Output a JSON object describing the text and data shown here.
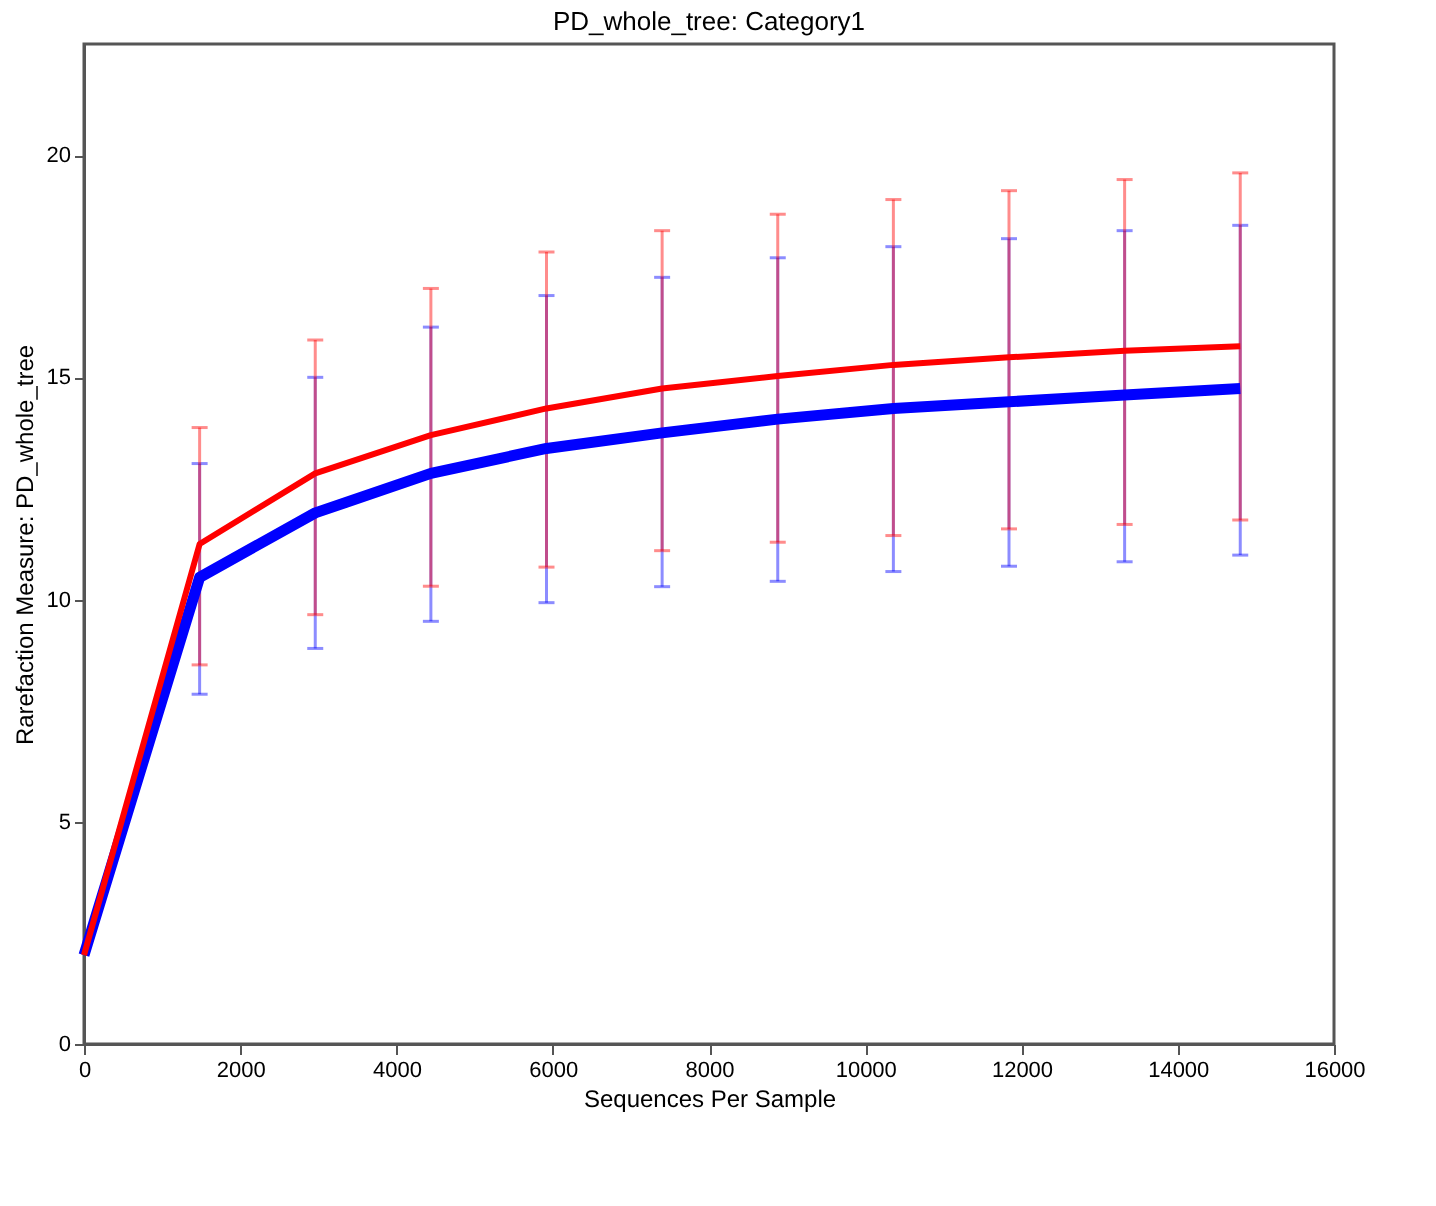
{
  "chart_data": {
    "type": "line",
    "title": "PD_whole_tree: Category1",
    "xlabel": "Sequences Per Sample",
    "ylabel": "Rarefaction Measure: PD_whole_tree",
    "x": [
      0,
      1480,
      2960,
      4440,
      5920,
      7400,
      8880,
      10360,
      11840,
      13320,
      14800
    ],
    "series": [
      {
        "color": "#0000ff",
        "values": [
          2.0,
          10.5,
          11.95,
          12.84,
          13.4,
          13.75,
          14.06,
          14.3,
          14.45,
          14.6,
          14.75
        ],
        "errors": [
          null,
          [
            7.87,
            13.06
          ],
          [
            8.9,
            15.0
          ],
          [
            9.51,
            16.13
          ],
          [
            9.93,
            16.84
          ],
          [
            10.29,
            17.25
          ],
          [
            10.41,
            17.69
          ],
          [
            10.63,
            17.94
          ],
          [
            10.75,
            18.12
          ],
          [
            10.85,
            18.3
          ],
          [
            11.0,
            18.42
          ]
        ]
      },
      {
        "color": "#ff0000",
        "values": [
          2.0,
          11.25,
          12.84,
          13.7,
          14.3,
          14.75,
          15.03,
          15.28,
          15.45,
          15.6,
          15.7
        ],
        "errors": [
          null,
          [
            8.53,
            13.87
          ],
          [
            9.66,
            15.84
          ],
          [
            10.3,
            17.0
          ],
          [
            10.73,
            17.82
          ],
          [
            11.1,
            18.3
          ],
          [
            11.29,
            18.67
          ],
          [
            11.44,
            19.0
          ],
          [
            11.59,
            19.2
          ],
          [
            11.69,
            19.45
          ],
          [
            11.79,
            19.6
          ]
        ]
      }
    ],
    "xlim": [
      0,
      16000
    ],
    "xticks": [
      0,
      2000,
      4000,
      6000,
      8000,
      10000,
      12000,
      14000,
      16000
    ],
    "ylim": [
      0,
      22.5
    ],
    "yticks": [
      0,
      5,
      10,
      15,
      20
    ],
    "grid": false,
    "marker": "none",
    "line_style": "solid"
  }
}
